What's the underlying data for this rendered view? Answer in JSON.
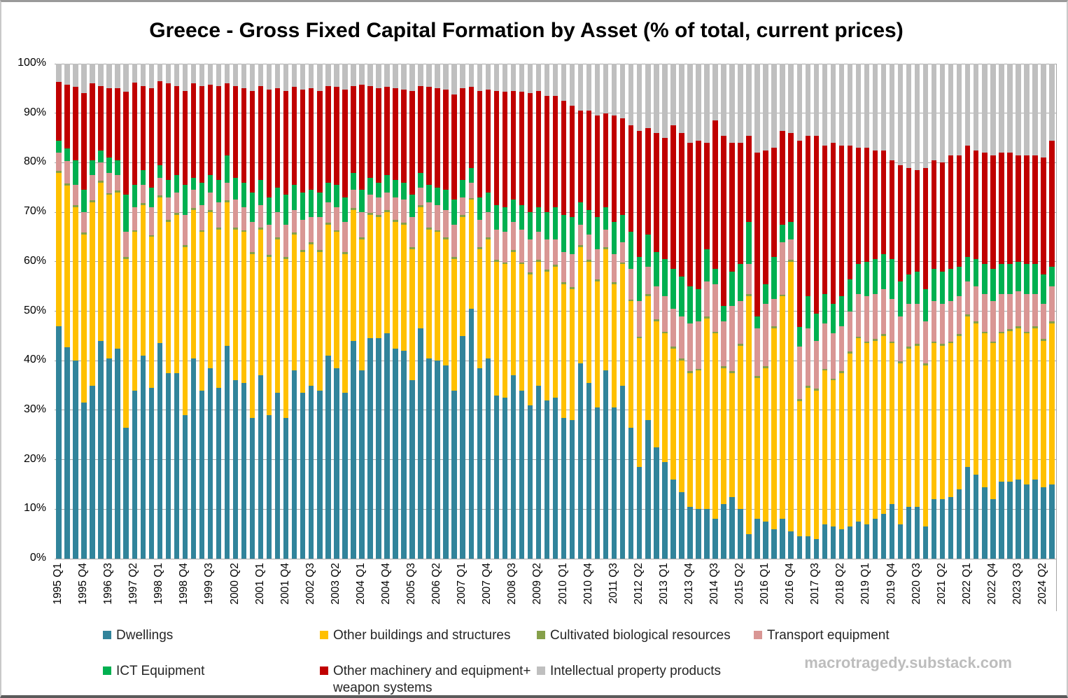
{
  "title": "Greece - Gross Fixed Capital Formation by Asset (% of total, current prices)",
  "watermark": "macrotragedy.substack.com",
  "y_axis": {
    "ticks": [
      "0%",
      "10%",
      "20%",
      "30%",
      "40%",
      "50%",
      "60%",
      "70%",
      "80%",
      "90%",
      "100%"
    ]
  },
  "x_axis": {
    "label_every": 3,
    "tick_labels": [
      "1995 Q1",
      "1995 Q4",
      "1996 Q3",
      "1997 Q2",
      "1998 Q1",
      "1998 Q4",
      "1999 Q3",
      "2000 Q2",
      "2001 Q1",
      "2001 Q4",
      "2002 Q3",
      "2003 Q2",
      "2004 Q1",
      "2004 Q4",
      "2005 Q3",
      "2006 Q2",
      "2007 Q1",
      "2007 Q4",
      "2008 Q3",
      "2009 Q2",
      "2010 Q1",
      "2010 Q4",
      "2011 Q3",
      "2012 Q2",
      "2013 Q1",
      "2013 Q4",
      "2014 Q3",
      "2015 Q2",
      "2016 Q1",
      "2016 Q4",
      "2017 Q3",
      "2018 Q2",
      "2019 Q1",
      "2019 Q4",
      "2020 Q3",
      "2021 Q2",
      "2022 Q1",
      "2022 Q4",
      "2023 Q3",
      "2024 Q2"
    ]
  },
  "colors": {
    "gridline": "#a6a6a6",
    "axis_text": "#000000"
  },
  "legend": {
    "row1": [
      0,
      1,
      2,
      3
    ],
    "row2": [
      4,
      5,
      6
    ]
  },
  "chart_data": {
    "type": "bar",
    "stacked": true,
    "unit": "% of total",
    "ylim": [
      0,
      100
    ],
    "grid": true,
    "legend_position": "bottom",
    "quarters": [
      "1995 Q1",
      "1995 Q2",
      "1995 Q3",
      "1995 Q4",
      "1996 Q1",
      "1996 Q2",
      "1996 Q3",
      "1996 Q4",
      "1997 Q1",
      "1997 Q2",
      "1997 Q3",
      "1997 Q4",
      "1998 Q1",
      "1998 Q2",
      "1998 Q3",
      "1998 Q4",
      "1999 Q1",
      "1999 Q2",
      "1999 Q3",
      "1999 Q4",
      "2000 Q1",
      "2000 Q2",
      "2000 Q3",
      "2000 Q4",
      "2001 Q1",
      "2001 Q2",
      "2001 Q3",
      "2001 Q4",
      "2002 Q1",
      "2002 Q2",
      "2002 Q3",
      "2002 Q4",
      "2003 Q1",
      "2003 Q2",
      "2003 Q3",
      "2003 Q4",
      "2004 Q1",
      "2004 Q2",
      "2004 Q3",
      "2004 Q4",
      "2005 Q1",
      "2005 Q2",
      "2005 Q3",
      "2005 Q4",
      "2006 Q1",
      "2006 Q2",
      "2006 Q3",
      "2006 Q4",
      "2007 Q1",
      "2007 Q2",
      "2007 Q3",
      "2007 Q4",
      "2008 Q1",
      "2008 Q2",
      "2008 Q3",
      "2008 Q4",
      "2009 Q1",
      "2009 Q2",
      "2009 Q3",
      "2009 Q4",
      "2010 Q1",
      "2010 Q2",
      "2010 Q3",
      "2010 Q4",
      "2011 Q1",
      "2011 Q2",
      "2011 Q3",
      "2011 Q4",
      "2012 Q1",
      "2012 Q2",
      "2012 Q3",
      "2012 Q4",
      "2013 Q1",
      "2013 Q2",
      "2013 Q3",
      "2013 Q4",
      "2014 Q1",
      "2014 Q2",
      "2014 Q3",
      "2014 Q4",
      "2015 Q1",
      "2015 Q2",
      "2015 Q3",
      "2015 Q4",
      "2016 Q1",
      "2016 Q2",
      "2016 Q3",
      "2016 Q4",
      "2017 Q1",
      "2017 Q2",
      "2017 Q3",
      "2017 Q4",
      "2018 Q1",
      "2018 Q2",
      "2018 Q3",
      "2018 Q4",
      "2019 Q1",
      "2019 Q2",
      "2019 Q3",
      "2019 Q4",
      "2020 Q1",
      "2020 Q2",
      "2020 Q3",
      "2020 Q4",
      "2021 Q1",
      "2021 Q2",
      "2021 Q3",
      "2021 Q4",
      "2022 Q1",
      "2022 Q2",
      "2022 Q3",
      "2022 Q4",
      "2023 Q1",
      "2023 Q2",
      "2023 Q3",
      "2023 Q4",
      "2024 Q1",
      "2024 Q2",
      "2024 Q3"
    ],
    "series": [
      {
        "name": "Dwellings",
        "color": "#31849B",
        "values": [
          47,
          42.5,
          40,
          31.5,
          35,
          44,
          40.5,
          42.5,
          26.5,
          34,
          41,
          34.5,
          43.5,
          37.5,
          37.5,
          29,
          40.5,
          34,
          38.5,
          34.5,
          43,
          36,
          35.5,
          28.5,
          37,
          29,
          33.5,
          28.5,
          38,
          33.5,
          35,
          34,
          41,
          38.5,
          33.5,
          44,
          38,
          44.5,
          44.5,
          45.5,
          42.5,
          42,
          36,
          46.5,
          40.5,
          40,
          39,
          34,
          45,
          50.5,
          38.5,
          40.5,
          33,
          32.5,
          37,
          34,
          31,
          35,
          32,
          32.5,
          28.5,
          28,
          39.5,
          35.5,
          30.5,
          38,
          30.5,
          35,
          26.5,
          18.5,
          28,
          22.5,
          19.5,
          16,
          13.5,
          10.5,
          10,
          10,
          8,
          11,
          12.5,
          10,
          5,
          8,
          7.5,
          6,
          8,
          5.5,
          4.5,
          4.5,
          4,
          7,
          6.5,
          6,
          6.5,
          7.5,
          7,
          8,
          9,
          11,
          7,
          10.5,
          10.5,
          6.5,
          12,
          12,
          12.5,
          14,
          18.5,
          17,
          14.5,
          12,
          15.5,
          15.5,
          16,
          15,
          16,
          14.5,
          15
        ]
      },
      {
        "name": "Other buildings and structures",
        "color": "#FFC000",
        "values": [
          31,
          32.5,
          31,
          34,
          37,
          32,
          33,
          31.5,
          34,
          32,
          30.5,
          30.5,
          29.5,
          30.5,
          32,
          34,
          30,
          32,
          31.5,
          32,
          29,
          30.5,
          30.5,
          33,
          29.5,
          32,
          31,
          32,
          27.5,
          28.5,
          28.5,
          28,
          26.5,
          27.5,
          28,
          26.5,
          26.5,
          25,
          24.5,
          24.5,
          25.5,
          25.5,
          26.5,
          24.5,
          26,
          26,
          25.5,
          26.5,
          24,
          22,
          24,
          24,
          27,
          27,
          25,
          25.5,
          26.5,
          25,
          26,
          26.5,
          27,
          26.5,
          23.5,
          24.5,
          25.5,
          24.5,
          25,
          24.5,
          25.5,
          26,
          25,
          25.5,
          26,
          26.5,
          26.5,
          27,
          28,
          38.5,
          37.5,
          27.5,
          25,
          33,
          48,
          28.5,
          31,
          40.5,
          45,
          54.5,
          27.3,
          30,
          30,
          31,
          29.5,
          31.5,
          35,
          37,
          36.5,
          36,
          36,
          32.5,
          32.5,
          32,
          32.5,
          32.5,
          31.5,
          31,
          31,
          31,
          30.5,
          30.5,
          31,
          31.5,
          30,
          30.5,
          30.5,
          30.5,
          30.5,
          29.5,
          32.5
        ]
      },
      {
        "name": "Cultivated biological resources",
        "color": "#86A04A",
        "values": [
          0.4,
          0.4,
          0.4,
          0.4,
          0.4,
          0.4,
          0.4,
          0.4,
          0.4,
          0.4,
          0.4,
          0.4,
          0.4,
          0.4,
          0.4,
          0.4,
          0.4,
          0.4,
          0.4,
          0.4,
          0.4,
          0.4,
          0.4,
          0.4,
          0.4,
          0.4,
          0.4,
          0.4,
          0.4,
          0.4,
          0.4,
          0.4,
          0.4,
          0.4,
          0.4,
          0.4,
          0.4,
          0.4,
          0.4,
          0.4,
          0.4,
          0.4,
          0.4,
          0.4,
          0.4,
          0.4,
          0.4,
          0.4,
          0.4,
          0.4,
          0.4,
          0.4,
          0.4,
          0.4,
          0.4,
          0.4,
          0.4,
          0.4,
          0.4,
          0.4,
          0.4,
          0.4,
          0.4,
          0.4,
          0.4,
          0.4,
          0.4,
          0.4,
          0.4,
          0.4,
          0.4,
          0.4,
          0.4,
          0.4,
          0.4,
          0.4,
          0.4,
          0.4,
          0.4,
          0.4,
          0.4,
          0.4,
          0.4,
          0.4,
          0.4,
          0.4,
          0.4,
          0.4,
          0.4,
          0.4,
          0.4,
          0.4,
          0.4,
          0.4,
          0.4,
          0.4,
          0.4,
          0.4,
          0.4,
          0.4,
          0.4,
          0.4,
          0.4,
          0.4,
          0.4,
          0.4,
          0.4,
          0.4,
          0.4,
          0.4,
          0.4,
          0.4,
          0.4,
          0.4,
          0.4,
          0.4,
          0.4,
          0.4,
          0.4
        ]
      },
      {
        "name": "Transport equipment",
        "color": "#D99694",
        "values": [
          3.6,
          4.6,
          4.1,
          4.1,
          5.1,
          3.6,
          4.1,
          3.1,
          5.1,
          4.6,
          3.6,
          5.6,
          3.6,
          4.6,
          4.1,
          6.1,
          3.6,
          5.1,
          3.6,
          5.1,
          3.6,
          5.6,
          4.6,
          6.1,
          4.6,
          6.1,
          5.1,
          6.6,
          4.6,
          6.1,
          5.1,
          6.6,
          4.1,
          4.6,
          6.1,
          3.6,
          5.1,
          3.6,
          3.6,
          3.6,
          4.6,
          4.6,
          6.1,
          3.6,
          5.1,
          5.1,
          5.6,
          6.6,
          3.6,
          3.1,
          5.6,
          5.1,
          6.1,
          6.1,
          5.6,
          6.6,
          6.6,
          5.6,
          6.1,
          5.1,
          6.1,
          6.6,
          4.1,
          5.1,
          6.1,
          3.6,
          5.6,
          4.1,
          6.1,
          7.1,
          5.6,
          6.6,
          7.1,
          7.6,
          8.6,
          9.6,
          9.6,
          7.1,
          9.6,
          9.1,
          13.1,
          8.6,
          6.1,
          9.6,
          12.6,
          5.6,
          10.6,
          4.1,
          10.6,
          11.6,
          9.6,
          9.1,
          9.1,
          9.1,
          8.1,
          8.6,
          9.1,
          9.1,
          9.1,
          8.6,
          9.1,
          8.6,
          8.1,
          8.6,
          8.1,
          8.1,
          8.1,
          7.6,
          6.6,
          7.1,
          7.6,
          8.1,
          7.6,
          7.1,
          7.1,
          7.6,
          6.6,
          7.1,
          7.1
        ]
      },
      {
        "name": "ICT Equipment",
        "color": "#00B050",
        "values": [
          2.5,
          2.5,
          5,
          4.5,
          3,
          2.5,
          3,
          3,
          7.5,
          4.5,
          3,
          4,
          2.5,
          3.5,
          3.5,
          6,
          2.5,
          4.5,
          3.5,
          4.5,
          5.5,
          4.5,
          5,
          6,
          5,
          5.5,
          5,
          6,
          5,
          5.5,
          5.5,
          5,
          4,
          4.5,
          5,
          3.5,
          4.5,
          3.5,
          3,
          3.5,
          3.5,
          3.5,
          4.5,
          3,
          3.5,
          3.5,
          4,
          5,
          3.5,
          3,
          4.5,
          4,
          5,
          5,
          4.5,
          5,
          5.5,
          5,
          5.5,
          6.5,
          7.5,
          7.5,
          4.5,
          5,
          6.5,
          4.5,
          6.5,
          5.5,
          7.5,
          9,
          6.5,
          7,
          7.5,
          8,
          8,
          7.5,
          6.5,
          6.5,
          3,
          3,
          7,
          7.5,
          8.5,
          2.5,
          4,
          8.5,
          3.5,
          3.5,
          4,
          6.5,
          5.5,
          6,
          6,
          6,
          6.5,
          6,
          7,
          7,
          7,
          8,
          7,
          6,
          6.5,
          6.5,
          6.5,
          6.5,
          6.5,
          6,
          5,
          5.5,
          6,
          6.5,
          6,
          6,
          6,
          6,
          6,
          6,
          4
        ]
      },
      {
        "name": "Other machinery and equipment+ weapon systems",
        "color": "#C00000",
        "values": [
          11.8,
          12.8,
          14.8,
          19.5,
          15.5,
          13,
          14,
          14.5,
          20.8,
          20.7,
          17,
          20,
          17,
          19.5,
          18,
          19,
          19,
          19.5,
          18.3,
          19,
          14.5,
          18.5,
          19,
          20.5,
          19,
          21.8,
          20,
          21,
          19.8,
          20.8,
          20.5,
          20.5,
          19.5,
          19.8,
          21.8,
          17.5,
          21.3,
          18.5,
          19,
          17.8,
          18.5,
          18.8,
          21,
          17.5,
          19.8,
          20,
          20.3,
          21.3,
          18.5,
          16.3,
          21.5,
          20.8,
          23,
          23.3,
          22,
          22.8,
          24,
          23.5,
          23.5,
          22.5,
          23,
          22.5,
          18.5,
          20,
          20.5,
          19,
          21.5,
          19.5,
          21.5,
          25.5,
          21.5,
          24,
          24.5,
          29,
          29,
          29,
          30,
          21.5,
          30,
          34.5,
          26,
          24.5,
          17.5,
          33,
          27,
          22,
          19,
          18,
          37.7,
          32.5,
          36,
          30,
          32.5,
          30.5,
          27,
          23.5,
          23,
          22,
          21,
          20,
          23.5,
          21.5,
          20.5,
          24.5,
          22,
          22,
          23,
          22.5,
          22.5,
          22,
          22.5,
          23,
          22.5,
          22.5,
          21.5,
          22,
          22,
          23.5,
          25.5
        ]
      },
      {
        "name": "Intellectual property products",
        "color": "#BFBFBF",
        "values": [
          3.7,
          4.2,
          4.7,
          6,
          4,
          4.5,
          5,
          5,
          5.7,
          3.8,
          4.5,
          5,
          3.5,
          4,
          4.5,
          5.5,
          4,
          4.5,
          4.2,
          4.5,
          4,
          4.5,
          5,
          5.5,
          4.5,
          5.2,
          5,
          5.5,
          4.7,
          5.2,
          5,
          5.5,
          4.5,
          4.7,
          5.2,
          4.5,
          4.2,
          4.5,
          5,
          4.7,
          5,
          5.2,
          5.5,
          4.5,
          4.7,
          5,
          5.2,
          6.2,
          5,
          4.7,
          5.5,
          5.2,
          5.5,
          5.7,
          5.5,
          5.7,
          6,
          5.5,
          6.5,
          6.5,
          7.5,
          8.5,
          9.5,
          9.5,
          10.5,
          10,
          10.5,
          11,
          12.5,
          13.5,
          13,
          14,
          15,
          12.5,
          14,
          16,
          15.5,
          16,
          11.5,
          14.5,
          16,
          16,
          14.5,
          18,
          17.5,
          17,
          13.5,
          14,
          15.5,
          14.5,
          14.5,
          16.5,
          16,
          16.5,
          16.5,
          17,
          17,
          17.5,
          17.5,
          19.5,
          20.5,
          21,
          21.5,
          21,
          19.5,
          20,
          18.5,
          18.5,
          16.5,
          17.5,
          18,
          18.5,
          18,
          18,
          18.5,
          18.5,
          18.5,
          19,
          15.5
        ]
      }
    ]
  }
}
